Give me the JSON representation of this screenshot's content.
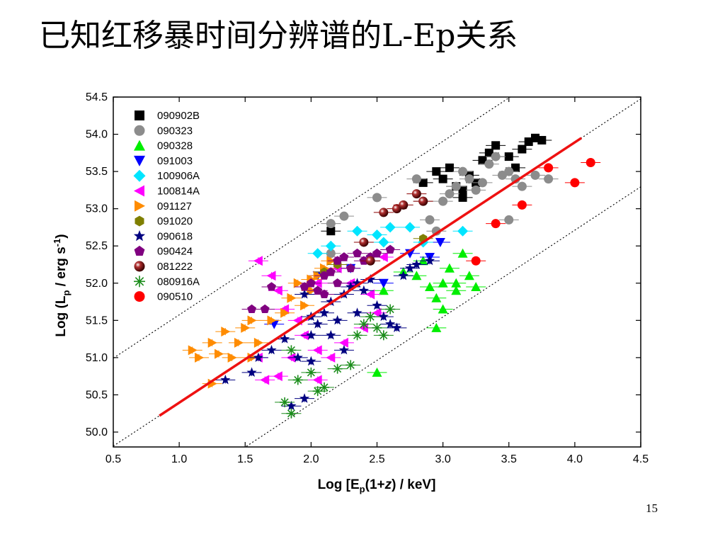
{
  "slide": {
    "title": "已知红移暴时间分辨谱的L-Ep关系",
    "page_number": "15"
  },
  "chart_data": {
    "type": "scatter",
    "title": "",
    "xlabel": "Log [Ep(1+z) / keV]",
    "ylabel": "Log (Lp / erg s-1)",
    "xlim": [
      0.5,
      4.5
    ],
    "ylim": [
      49.8,
      54.5
    ],
    "x_ticks": [
      "0.5",
      "1.0",
      "1.5",
      "2.0",
      "2.5",
      "3.0",
      "3.5",
      "4.0",
      "4.5"
    ],
    "y_ticks": [
      "50.0",
      "50.5",
      "51.0",
      "51.5",
      "52.0",
      "52.5",
      "53.0",
      "53.5",
      "54.0",
      "54.5"
    ],
    "legend_position": "top-left",
    "series": [
      {
        "name": "090902B",
        "color": "#000000",
        "marker": "square",
        "points": [
          [
            2.85,
            53.35
          ],
          [
            2.95,
            53.5
          ],
          [
            3.0,
            53.4
          ],
          [
            3.05,
            53.55
          ],
          [
            3.1,
            53.3
          ],
          [
            3.15,
            53.25
          ],
          [
            3.2,
            53.45
          ],
          [
            3.25,
            53.35
          ],
          [
            3.3,
            53.65
          ],
          [
            3.35,
            53.75
          ],
          [
            3.4,
            53.85
          ],
          [
            3.5,
            53.7
          ],
          [
            3.6,
            53.8
          ],
          [
            3.65,
            53.9
          ],
          [
            3.7,
            53.95
          ],
          [
            3.75,
            53.92
          ],
          [
            3.15,
            53.15
          ],
          [
            3.55,
            53.55
          ],
          [
            2.15,
            52.7
          ]
        ]
      },
      {
        "name": "090323",
        "color": "#8c8c8c",
        "marker": "circle",
        "points": [
          [
            2.15,
            52.8
          ],
          [
            2.25,
            52.9
          ],
          [
            2.5,
            53.15
          ],
          [
            2.8,
            53.4
          ],
          [
            2.9,
            52.85
          ],
          [
            2.95,
            52.7
          ],
          [
            3.0,
            53.1
          ],
          [
            3.05,
            53.2
          ],
          [
            3.1,
            53.3
          ],
          [
            3.15,
            53.5
          ],
          [
            3.2,
            53.4
          ],
          [
            3.3,
            53.35
          ],
          [
            3.35,
            53.6
          ],
          [
            3.4,
            53.7
          ],
          [
            3.45,
            53.45
          ],
          [
            3.5,
            53.5
          ],
          [
            3.55,
            53.4
          ],
          [
            3.6,
            53.3
          ],
          [
            3.7,
            53.45
          ],
          [
            3.5,
            52.85
          ],
          [
            3.25,
            53.25
          ],
          [
            2.15,
            52.4
          ],
          [
            2.85,
            53.1
          ],
          [
            3.8,
            53.4
          ]
        ]
      },
      {
        "name": "090328",
        "color": "#00ee00",
        "marker": "triangle-up",
        "points": [
          [
            2.55,
            51.9
          ],
          [
            2.7,
            52.15
          ],
          [
            2.8,
            52.1
          ],
          [
            2.9,
            51.95
          ],
          [
            2.95,
            51.8
          ],
          [
            3.0,
            52.0
          ],
          [
            3.05,
            52.2
          ],
          [
            3.1,
            51.9
          ],
          [
            3.15,
            52.4
          ],
          [
            3.2,
            52.1
          ],
          [
            3.25,
            51.95
          ],
          [
            3.0,
            51.65
          ],
          [
            2.95,
            51.4
          ],
          [
            2.5,
            50.8
          ],
          [
            3.1,
            52.0
          ],
          [
            2.85,
            52.3
          ]
        ]
      },
      {
        "name": "091003",
        "color": "#0000ff",
        "marker": "triangle-down",
        "points": [
          [
            2.05,
            52.1
          ],
          [
            2.3,
            52.2
          ],
          [
            2.55,
            52.0
          ],
          [
            2.75,
            52.4
          ],
          [
            2.9,
            52.35
          ],
          [
            2.98,
            52.55
          ],
          [
            1.72,
            51.45
          ]
        ]
      },
      {
        "name": "100906A",
        "color": "#00e5ff",
        "marker": "diamond",
        "points": [
          [
            2.05,
            52.4
          ],
          [
            2.15,
            52.5
          ],
          [
            2.35,
            52.7
          ],
          [
            2.5,
            52.65
          ],
          [
            2.6,
            52.75
          ],
          [
            2.75,
            52.75
          ],
          [
            2.85,
            52.55
          ],
          [
            3.15,
            52.7
          ],
          [
            2.55,
            52.55
          ]
        ]
      },
      {
        "name": "100814A",
        "color": "#ff00ff",
        "marker": "triangle-left",
        "points": [
          [
            1.6,
            52.3
          ],
          [
            1.7,
            52.1
          ],
          [
            1.75,
            51.9
          ],
          [
            1.8,
            51.65
          ],
          [
            1.9,
            51.5
          ],
          [
            1.95,
            51.3
          ],
          [
            2.05,
            51.1
          ],
          [
            2.15,
            51.0
          ],
          [
            1.6,
            51.0
          ],
          [
            1.65,
            50.7
          ],
          [
            1.75,
            50.75
          ],
          [
            2.05,
            50.7
          ],
          [
            2.25,
            51.2
          ],
          [
            2.4,
            51.4
          ],
          [
            2.5,
            51.6
          ],
          [
            2.45,
            51.85
          ],
          [
            2.3,
            52.0
          ],
          [
            2.2,
            52.2
          ],
          [
            2.05,
            52.0
          ],
          [
            2.55,
            52.35
          ],
          [
            1.85,
            51.0
          ]
        ]
      },
      {
        "name": "091127",
        "color": "#ff8c00",
        "marker": "triangle-right",
        "points": [
          [
            1.1,
            51.1
          ],
          [
            1.15,
            51.0
          ],
          [
            1.25,
            51.2
          ],
          [
            1.3,
            51.05
          ],
          [
            1.4,
            51.0
          ],
          [
            1.45,
            51.2
          ],
          [
            1.55,
            51.0
          ],
          [
            1.6,
            51.2
          ],
          [
            1.5,
            51.4
          ],
          [
            1.35,
            51.35
          ],
          [
            1.7,
            51.5
          ],
          [
            1.8,
            51.6
          ],
          [
            1.85,
            51.8
          ],
          [
            1.9,
            52.0
          ],
          [
            1.95,
            51.7
          ],
          [
            2.0,
            52.05
          ],
          [
            2.05,
            52.1
          ],
          [
            2.1,
            52.2
          ],
          [
            2.15,
            52.3
          ],
          [
            1.25,
            50.65
          ],
          [
            1.55,
            51.5
          ],
          [
            2.0,
            51.9
          ]
        ]
      },
      {
        "name": "091020",
        "color": "#7f7f00",
        "marker": "hexagon",
        "points": [
          [
            2.1,
            52.15
          ],
          [
            2.2,
            52.25
          ],
          [
            2.85,
            52.6
          ]
        ]
      },
      {
        "name": "090618",
        "color": "#000080",
        "marker": "star",
        "points": [
          [
            1.35,
            50.7
          ],
          [
            1.55,
            50.8
          ],
          [
            1.6,
            51.0
          ],
          [
            1.7,
            51.1
          ],
          [
            1.8,
            51.25
          ],
          [
            1.85,
            50.35
          ],
          [
            1.9,
            51.0
          ],
          [
            1.95,
            50.45
          ],
          [
            2.0,
            51.3
          ],
          [
            2.05,
            51.45
          ],
          [
            2.1,
            51.6
          ],
          [
            2.15,
            51.75
          ],
          [
            2.2,
            51.5
          ],
          [
            2.25,
            51.85
          ],
          [
            2.3,
            51.95
          ],
          [
            2.35,
            52.0
          ],
          [
            2.4,
            51.9
          ],
          [
            2.45,
            52.05
          ],
          [
            2.5,
            51.7
          ],
          [
            2.55,
            51.55
          ],
          [
            2.6,
            51.45
          ],
          [
            2.65,
            51.4
          ],
          [
            2.7,
            52.1
          ],
          [
            2.75,
            52.2
          ],
          [
            2.8,
            52.25
          ],
          [
            2.9,
            52.3
          ],
          [
            2.0,
            50.95
          ],
          [
            2.15,
            51.3
          ],
          [
            2.25,
            51.1
          ],
          [
            2.35,
            51.6
          ],
          [
            1.95,
            51.85
          ],
          [
            2.0,
            51.55
          ]
        ]
      },
      {
        "name": "090424",
        "color": "#800080",
        "marker": "pentagon",
        "points": [
          [
            1.55,
            51.65
          ],
          [
            1.65,
            51.65
          ],
          [
            1.7,
            51.95
          ],
          [
            2.0,
            52.0
          ],
          [
            2.05,
            51.9
          ],
          [
            2.1,
            52.1
          ],
          [
            2.15,
            52.15
          ],
          [
            2.2,
            52.3
          ],
          [
            2.25,
            52.35
          ],
          [
            2.3,
            52.2
          ],
          [
            2.35,
            52.4
          ],
          [
            2.4,
            52.3
          ],
          [
            2.45,
            52.35
          ],
          [
            2.5,
            52.4
          ],
          [
            2.6,
            52.45
          ],
          [
            2.1,
            51.85
          ],
          [
            2.2,
            52.0
          ],
          [
            1.95,
            51.95
          ]
        ]
      },
      {
        "name": "081222",
        "color": "#8b0000",
        "marker": "sphere",
        "points": [
          [
            2.55,
            52.95
          ],
          [
            2.65,
            53.0
          ],
          [
            2.7,
            53.05
          ],
          [
            2.8,
            53.2
          ],
          [
            2.85,
            53.1
          ],
          [
            2.4,
            52.55
          ],
          [
            2.45,
            52.3
          ]
        ]
      },
      {
        "name": "080916A",
        "color": "#1a8c1a",
        "marker": "asterisk",
        "points": [
          [
            1.8,
            50.4
          ],
          [
            1.85,
            50.25
          ],
          [
            1.9,
            50.7
          ],
          [
            2.0,
            50.8
          ],
          [
            2.05,
            50.55
          ],
          [
            2.1,
            50.6
          ],
          [
            2.2,
            50.85
          ],
          [
            2.3,
            50.9
          ],
          [
            2.35,
            51.3
          ],
          [
            2.4,
            51.45
          ],
          [
            2.45,
            51.55
          ],
          [
            2.5,
            51.4
          ],
          [
            2.6,
            51.65
          ],
          [
            2.55,
            51.3
          ],
          [
            1.85,
            51.1
          ]
        ]
      },
      {
        "name": "090510",
        "color": "#ff0000",
        "marker": "circle",
        "points": [
          [
            3.25,
            52.3
          ],
          [
            3.4,
            52.8
          ],
          [
            3.6,
            53.05
          ],
          [
            3.8,
            53.55
          ],
          [
            4.0,
            53.35
          ],
          [
            4.12,
            53.62
          ]
        ]
      }
    ],
    "fit_line": {
      "color": "#ee1111",
      "x": [
        0.85,
        4.05
      ],
      "y": [
        50.22,
        53.95
      ]
    },
    "dotted_lines": {
      "color": "#000000",
      "offsets": [
        -1.18,
        0.0,
        1.18
      ],
      "slope": 1.165
    }
  }
}
